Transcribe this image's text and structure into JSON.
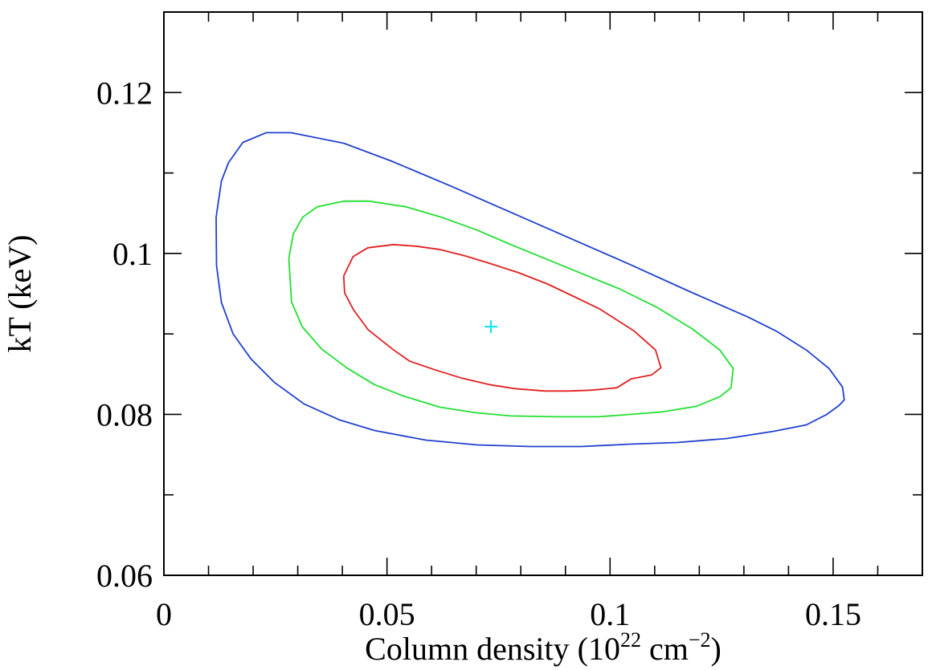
{
  "chart_data": {
    "type": "line",
    "title": "",
    "xlabel": "Column density (10",
    "xlabel_sup": "22",
    "xlabel_unit": " cm",
    "xlabel_unit_sup": "−2",
    "xlabel_close": ")",
    "ylabel": "kT (keV)",
    "xlim": [
      0,
      0.17
    ],
    "ylim": [
      0.06,
      0.13
    ],
    "x_ticks": [
      {
        "value": 0,
        "label": "0"
      },
      {
        "value": 0.05,
        "label": "0.05"
      },
      {
        "value": 0.1,
        "label": "0.1"
      },
      {
        "value": 0.15,
        "label": "0.15"
      }
    ],
    "x_minor_step": 0.01,
    "y_ticks": [
      {
        "value": 0.06,
        "label": "0.06"
      },
      {
        "value": 0.08,
        "label": "0.08"
      },
      {
        "value": 0.1,
        "label": "0.1"
      },
      {
        "value": 0.12,
        "label": "0.12"
      }
    ],
    "y_minor_step": 0.01,
    "grid": false,
    "best_fit": {
      "x": 0.0733,
      "y": 0.0909,
      "color": "#00e5ee"
    },
    "series": [
      {
        "color": "#2040d0",
        "x": [
          0.0117,
          0.0129,
          0.0145,
          0.0177,
          0.0229,
          0.0285,
          0.0403,
          0.0509,
          0.0646,
          0.0782,
          0.0914,
          0.1046,
          0.1177,
          0.1309,
          0.1374,
          0.144,
          0.1491,
          0.1521,
          0.1525,
          0.1513,
          0.1486,
          0.144,
          0.1367,
          0.1262,
          0.115,
          0.1046,
          0.0935,
          0.0822,
          0.0703,
          0.0587,
          0.0472,
          0.0394,
          0.0314,
          0.0247,
          0.0195,
          0.0155,
          0.0129,
          0.0118,
          0.0117
        ],
        "y": [
          0.1045,
          0.109,
          0.1113,
          0.1138,
          0.115,
          0.115,
          0.1137,
          0.1115,
          0.1083,
          0.105,
          0.1018,
          0.0986,
          0.0953,
          0.0921,
          0.0903,
          0.088,
          0.0857,
          0.0834,
          0.0818,
          0.0811,
          0.08,
          0.0787,
          0.0779,
          0.077,
          0.0765,
          0.0763,
          0.076,
          0.076,
          0.0762,
          0.0768,
          0.078,
          0.0793,
          0.0813,
          0.084,
          0.0869,
          0.09,
          0.0939,
          0.0985,
          0.1045
        ]
      },
      {
        "color": "#20e030",
        "x": [
          0.028,
          0.029,
          0.0311,
          0.0344,
          0.0403,
          0.046,
          0.0542,
          0.0622,
          0.0702,
          0.0782,
          0.0862,
          0.0941,
          0.1021,
          0.1105,
          0.1185,
          0.1246,
          0.1276,
          0.1271,
          0.1246,
          0.1193,
          0.1116,
          0.1047,
          0.0974,
          0.0877,
          0.0779,
          0.0699,
          0.0618,
          0.0536,
          0.0472,
          0.0412,
          0.0354,
          0.031,
          0.0286,
          0.028
        ],
        "y": [
          0.0994,
          0.1024,
          0.1045,
          0.1058,
          0.1065,
          0.1065,
          0.1058,
          0.1045,
          0.1029,
          0.101,
          0.0992,
          0.0974,
          0.0956,
          0.0933,
          0.0906,
          0.088,
          0.0857,
          0.0833,
          0.0822,
          0.081,
          0.0803,
          0.08,
          0.0797,
          0.0797,
          0.0798,
          0.0802,
          0.0809,
          0.0823,
          0.0837,
          0.0857,
          0.0881,
          0.0909,
          0.094,
          0.0994
        ]
      },
      {
        "color": "#e02020",
        "x": [
          0.0403,
          0.0424,
          0.0457,
          0.0515,
          0.0565,
          0.0617,
          0.0675,
          0.0734,
          0.0795,
          0.086,
          0.0917,
          0.0977,
          0.1053,
          0.1102,
          0.1114,
          0.1093,
          0.1047,
          0.1015,
          0.0956,
          0.0907,
          0.0854,
          0.0786,
          0.0729,
          0.0668,
          0.061,
          0.0551,
          0.0515,
          0.0458,
          0.0425,
          0.0405,
          0.0403
        ],
        "y": [
          0.0972,
          0.0996,
          0.1007,
          0.1011,
          0.1009,
          0.1005,
          0.0997,
          0.0987,
          0.0976,
          0.0962,
          0.0947,
          0.0931,
          0.0904,
          0.088,
          0.0858,
          0.0849,
          0.0844,
          0.0833,
          0.083,
          0.0829,
          0.0829,
          0.0832,
          0.0837,
          0.0845,
          0.0855,
          0.0866,
          0.088,
          0.0905,
          0.093,
          0.0951,
          0.0972
        ]
      }
    ]
  }
}
